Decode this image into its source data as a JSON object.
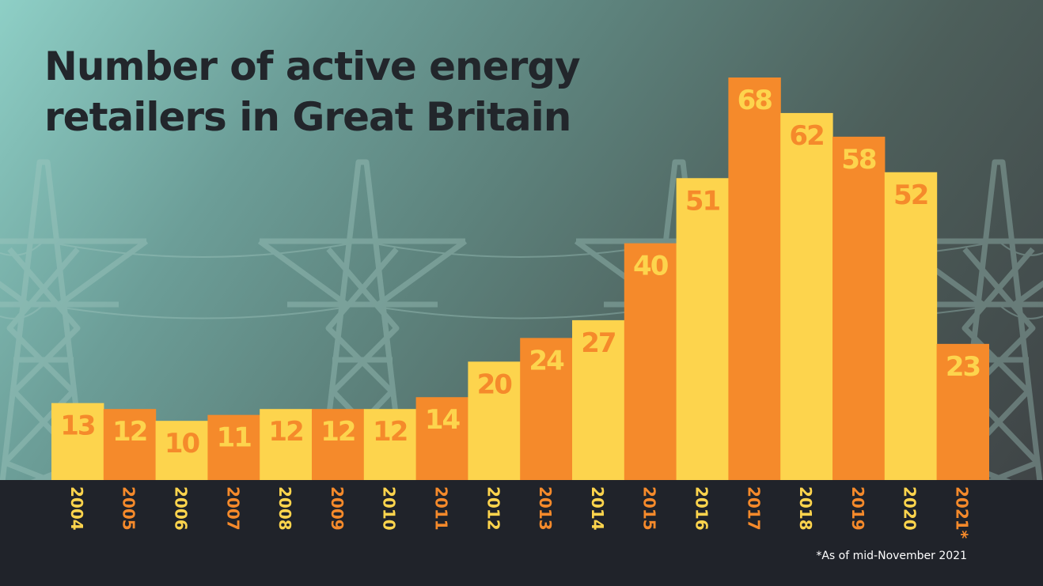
{
  "title_lines": [
    "Number of active energy",
    "retailers in Great Britain"
  ],
  "footnote": "*As of mid-November 2021",
  "colors": {
    "yellow": "#fdd44d",
    "orange": "#f58a2b",
    "title": "#22262b",
    "footer": "#20232a"
  },
  "chart_data": {
    "type": "bar",
    "categories": [
      "2004",
      "2005",
      "2006",
      "2007",
      "2008",
      "2009",
      "2010",
      "2011",
      "2012",
      "2013",
      "2014",
      "2015",
      "2016",
      "2017",
      "2018",
      "2019",
      "2020",
      "2021*"
    ],
    "values": [
      13,
      12,
      10,
      11,
      12,
      12,
      12,
      14,
      20,
      24,
      27,
      40,
      51,
      68,
      62,
      58,
      52,
      23
    ],
    "bar_colors": [
      "yellow",
      "orange",
      "yellow",
      "orange",
      "yellow",
      "orange",
      "yellow",
      "orange",
      "yellow",
      "orange",
      "yellow",
      "orange",
      "yellow",
      "orange",
      "yellow",
      "orange",
      "yellow",
      "orange"
    ],
    "label_colors": [
      "orange",
      "yellow",
      "orange",
      "yellow",
      "orange",
      "yellow",
      "orange",
      "yellow",
      "orange",
      "yellow",
      "orange",
      "yellow",
      "orange",
      "yellow",
      "orange",
      "yellow",
      "orange",
      "yellow"
    ],
    "title": "Number of active energy retailers in Great Britain",
    "xlabel": "",
    "ylabel": "",
    "ylim": [
      0,
      68
    ],
    "grid": false,
    "legend": "none",
    "tick_label_orientation": "vertical",
    "data_labels": "inside-top"
  }
}
